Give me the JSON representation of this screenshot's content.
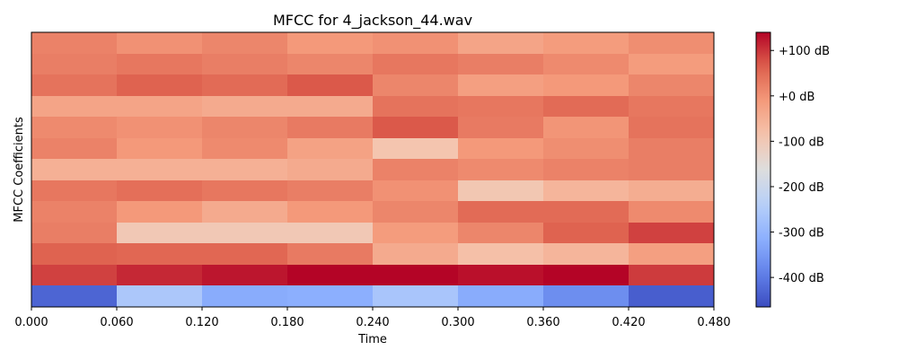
{
  "chart_data": {
    "type": "heatmap",
    "title": "MFCC for 4_jackson_44.wav",
    "xlabel": "Time",
    "ylabel": "MFCC Coefficients",
    "x_ticks": [
      "0.000",
      "0.060",
      "0.120",
      "0.180",
      "0.240",
      "0.300",
      "0.360",
      "0.420",
      "0.480"
    ],
    "x_lim": [
      0,
      0.48
    ],
    "n_frames": 8,
    "n_coefficients": 13,
    "colormap": "coolwarm",
    "color_range": [
      -465,
      140
    ],
    "colorbar_ticks": [
      {
        "value": 100,
        "label": "+100 dB"
      },
      {
        "value": 0,
        "label": "+0 dB"
      },
      {
        "value": -100,
        "label": "-100 dB"
      },
      {
        "value": -200,
        "label": "-200 dB"
      },
      {
        "value": -300,
        "label": "-300 dB"
      },
      {
        "value": -400,
        "label": "-400 dB"
      }
    ],
    "rows_top_to_bottom": [
      [
        20,
        0,
        15,
        -10,
        0,
        -30,
        -15,
        5
      ],
      [
        25,
        35,
        25,
        15,
        35,
        25,
        10,
        -15
      ],
      [
        40,
        60,
        50,
        70,
        15,
        -20,
        -10,
        15
      ],
      [
        -30,
        -30,
        -40,
        -40,
        40,
        35,
        50,
        35
      ],
      [
        10,
        0,
        15,
        30,
        70,
        30,
        -5,
        40
      ],
      [
        20,
        -10,
        10,
        -25,
        -90,
        -10,
        5,
        25
      ],
      [
        -50,
        -50,
        -50,
        -40,
        20,
        10,
        20,
        25
      ],
      [
        35,
        45,
        35,
        25,
        0,
        -95,
        -60,
        -45
      ],
      [
        20,
        -10,
        -40,
        -10,
        15,
        50,
        50,
        10
      ],
      [
        25,
        -100,
        -100,
        -100,
        -15,
        15,
        60,
        90
      ],
      [
        60,
        55,
        55,
        30,
        -40,
        -80,
        -60,
        -20
      ],
      [
        90,
        110,
        125,
        140,
        140,
        130,
        140,
        95
      ],
      [
        -430,
        -260,
        -320,
        -315,
        -265,
        -320,
        -370,
        -440
      ]
    ]
  }
}
